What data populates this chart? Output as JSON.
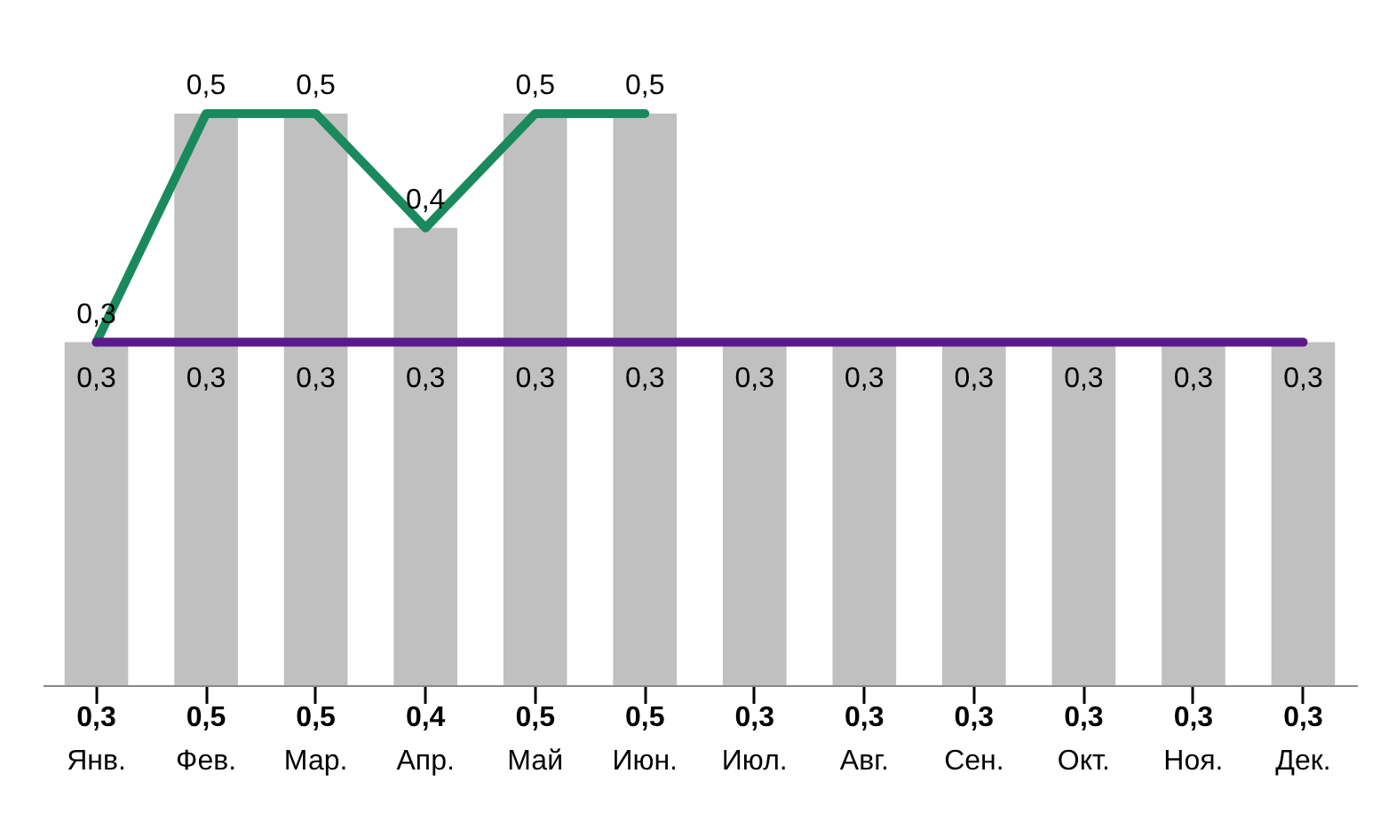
{
  "chart_data": {
    "type": "bar",
    "categories": [
      "Янв.",
      "Фев.",
      "Мар.",
      "Апр.",
      "Май",
      "Июн.",
      "Июл.",
      "Авг.",
      "Сен.",
      "Окт.",
      "Ноя.",
      "Дек."
    ],
    "series": [
      {
        "color": "#c0c0c0",
        "values": [
          0.3,
          0.5,
          0.5,
          0.4,
          0.5,
          0.5,
          0.3,
          0.3,
          0.3,
          0.3,
          0.3,
          0.3
        ],
        "value_labels": [
          "0,3",
          "0,5",
          "0,5",
          "0,4",
          "0,5",
          "0,5",
          "0,3",
          "0,3",
          "0,3",
          "0,3",
          "0,3",
          "0,3"
        ]
      },
      {
        "type": "line",
        "color": "#1a8a5e",
        "values": [
          0.3,
          0.5,
          0.5,
          0.4,
          0.5,
          0.5,
          null,
          null,
          null,
          null,
          null,
          null
        ],
        "value_labels": [
          "0,3",
          "0,5",
          "0,5",
          "0,4",
          "0,5",
          "0,5",
          null,
          null,
          null,
          null,
          null,
          null
        ]
      },
      {
        "type": "line",
        "color": "#5a1a8c",
        "values": [
          0.3,
          0.3,
          0.3,
          0.3,
          0.3,
          0.3,
          0.3,
          0.3,
          0.3,
          0.3,
          0.3,
          0.3
        ],
        "value_labels": [
          "0,3",
          "0,3",
          "0,3",
          "0,3",
          "0,3",
          "0,3",
          "0,3",
          "0,3",
          "0,3",
          "0,3",
          "0,3",
          "0,3"
        ]
      }
    ]
  }
}
